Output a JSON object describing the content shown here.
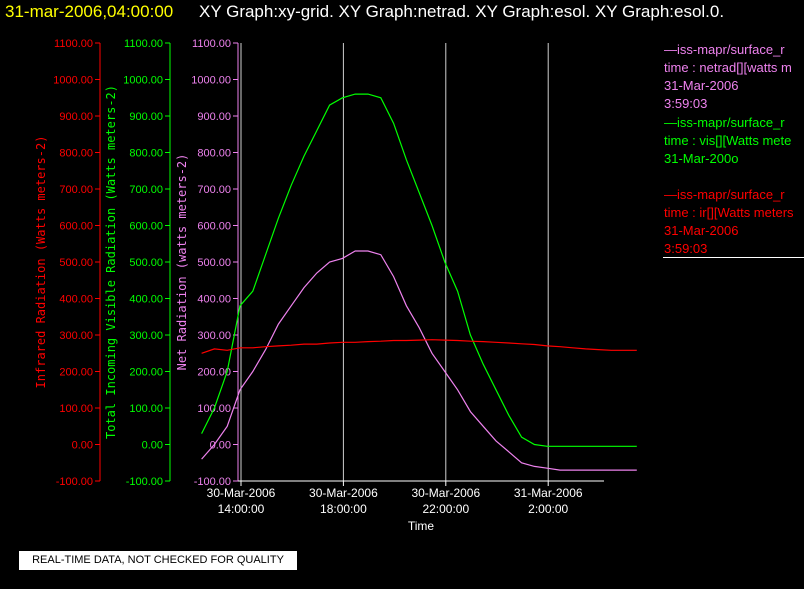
{
  "header": {
    "timestamp": "31-mar-2006,04:00:00",
    "titles": "XY Graph:xy-grid.  XY Graph:netrad.  XY Graph:esol.  XY Graph:esol.0."
  },
  "legend": {
    "net": {
      "line1": "—iss-mapr/surface_r",
      "line2": "time : netrad[][watts m",
      "line3": "31-Mar-2006",
      "line4": "3:59:03"
    },
    "vis": {
      "line1": "—iss-mapr/surface_r",
      "line2": "time : vis[][Watts mete",
      "line3": "31-Mar-200o"
    },
    "ir": {
      "line1": "—iss-mapr/surface_r",
      "line2": "time : ir[][Watts meters",
      "line3": "31-Mar-2006",
      "line4": "3:59:03"
    }
  },
  "quality_note": "REAL-TIME DATA, NOT CHECKED FOR QUALITY",
  "colors": {
    "ir": "#ff0000",
    "vis": "#00ff00",
    "net": "#ee82ee",
    "header_yellow": "#ffff00",
    "axis_white": "#ffffff"
  },
  "chart_data": {
    "type": "line",
    "xlabel": "Time",
    "x_ticks": [
      {
        "line1": "30-Mar-2006",
        "line2": "14:00:00"
      },
      {
        "line1": "30-Mar-2006",
        "line2": "18:00:00"
      },
      {
        "line1": "30-Mar-2006",
        "line2": "22:00:00"
      },
      {
        "line1": "31-Mar-2006",
        "line2": "2:00:00"
      }
    ],
    "xlim_hours_from_1400": [
      -1.5,
      15.8
    ],
    "vertical_grid_hours": [
      0,
      4,
      8,
      12
    ],
    "y_ticks": [
      "1100.00",
      "1000.00",
      "900.00",
      "800.00",
      "700.00",
      "600.00",
      "500.00",
      "400.00",
      "300.00",
      "200.00",
      "100.00",
      "0.00",
      "-100.00"
    ],
    "ylim": [
      -100,
      1100
    ],
    "axes": [
      {
        "key": "ir",
        "label": "Infrared Radiation (Watts meters-2)",
        "color": "#ff0000"
      },
      {
        "key": "vis",
        "label": "Total Incoming Visible Radiation (Watts meters-2)",
        "color": "#00ff00"
      },
      {
        "key": "net",
        "label": "Net Radiation (watts meters-2)",
        "color": "#ee82ee"
      }
    ],
    "series": [
      {
        "key": "vis",
        "color": "#00ff00",
        "x": [
          -1.5,
          -1,
          -0.5,
          0,
          0.5,
          1,
          1.5,
          2,
          2.5,
          3,
          3.5,
          4,
          4.5,
          5,
          5.5,
          6,
          6.5,
          7,
          7.5,
          8,
          8.5,
          9,
          9.5,
          10,
          10.5,
          11,
          11.5,
          12,
          12.5,
          13,
          13.5,
          14,
          14.5,
          15,
          15.5
        ],
        "y": [
          30,
          100,
          200,
          380,
          420,
          520,
          620,
          710,
          790,
          860,
          930,
          950,
          960,
          960,
          950,
          880,
          780,
          690,
          600,
          500,
          420,
          300,
          220,
          150,
          80,
          20,
          0,
          -5,
          -5,
          -5,
          -5,
          -5,
          -5,
          -5,
          -5
        ]
      },
      {
        "key": "net",
        "color": "#ee82ee",
        "x": [
          -1.5,
          -1,
          -0.5,
          0,
          0.5,
          1,
          1.5,
          2,
          2.5,
          3,
          3.5,
          4,
          4.5,
          5,
          5.5,
          6,
          6.5,
          7,
          7.5,
          8,
          8.5,
          9,
          9.5,
          10,
          10.5,
          11,
          11.5,
          12,
          12.5,
          13,
          13.5,
          14,
          14.5,
          15,
          15.5
        ],
        "y": [
          -40,
          0,
          50,
          150,
          200,
          260,
          330,
          380,
          430,
          470,
          500,
          510,
          530,
          530,
          520,
          460,
          380,
          320,
          250,
          200,
          150,
          90,
          50,
          10,
          -20,
          -50,
          -60,
          -65,
          -70,
          -70,
          -70,
          -70,
          -70,
          -70,
          -70
        ]
      },
      {
        "key": "ir",
        "color": "#ff0000",
        "x": [
          -1.5,
          -1,
          -0.5,
          0,
          0.5,
          1,
          1.5,
          2,
          2.5,
          3,
          3.5,
          4,
          4.5,
          5,
          5.5,
          6,
          6.5,
          7,
          7.5,
          8,
          8.5,
          9,
          9.5,
          10,
          10.5,
          11,
          11.5,
          12,
          12.5,
          13,
          13.5,
          14,
          14.5,
          15,
          15.5
        ],
        "y": [
          250,
          262,
          258,
          265,
          265,
          268,
          270,
          272,
          275,
          275,
          278,
          280,
          280,
          282,
          283,
          285,
          285,
          286,
          287,
          286,
          285,
          283,
          282,
          280,
          278,
          276,
          274,
          270,
          268,
          265,
          262,
          260,
          258,
          258,
          258
        ]
      }
    ]
  }
}
